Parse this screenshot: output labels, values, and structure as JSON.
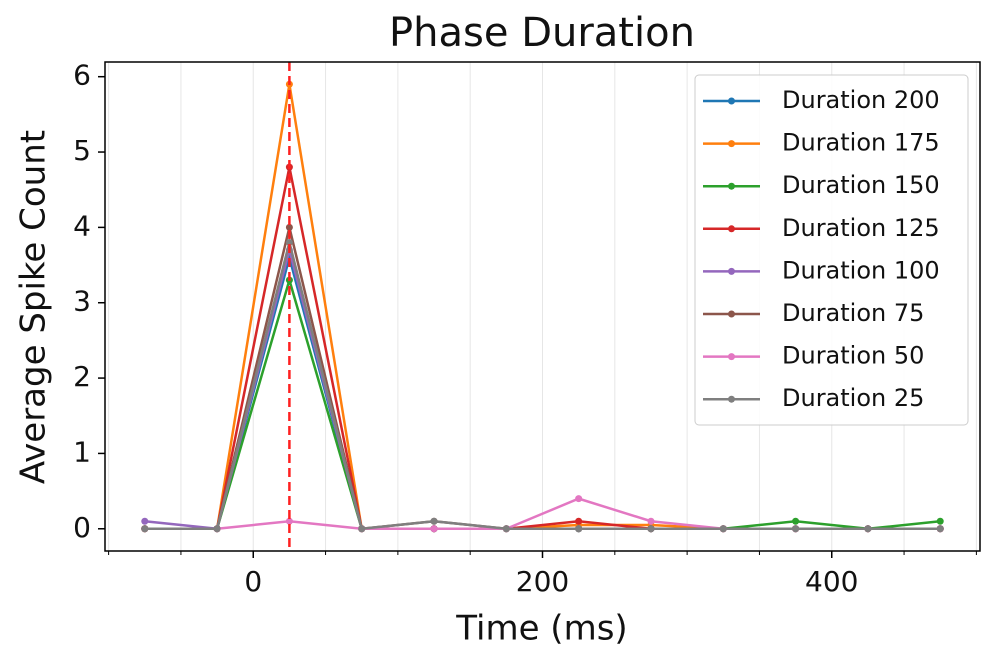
{
  "chart_data": {
    "type": "line",
    "title": "Phase Duration",
    "xlabel": "Time (ms)",
    "ylabel": "Average Spike Count",
    "x": [
      -75,
      -25,
      25,
      75,
      125,
      175,
      225,
      275,
      325,
      375,
      425,
      475
    ],
    "series": [
      {
        "name": "Duration 200",
        "color": "#1f77b4",
        "values": [
          0,
          0,
          3.6,
          0,
          0,
          0,
          0,
          0,
          0,
          0,
          0,
          0
        ]
      },
      {
        "name": "Duration 175",
        "color": "#ff7f0e",
        "values": [
          0,
          0,
          5.9,
          0,
          0,
          0,
          0.05,
          0.05,
          0,
          0,
          0,
          0
        ]
      },
      {
        "name": "Duration 150",
        "color": "#2ca02c",
        "values": [
          0,
          0,
          3.3,
          0,
          0,
          0,
          0,
          0,
          0,
          0.1,
          0,
          0.1
        ]
      },
      {
        "name": "Duration 125",
        "color": "#d62728",
        "values": [
          0,
          0,
          4.8,
          0,
          0,
          0,
          0.1,
          0,
          0,
          0,
          0,
          0
        ]
      },
      {
        "name": "Duration 100",
        "color": "#9467bd",
        "values": [
          0.1,
          0,
          3.7,
          0,
          0,
          0,
          0,
          0,
          0,
          0,
          0,
          0
        ]
      },
      {
        "name": "Duration 75",
        "color": "#8c564b",
        "values": [
          0,
          0,
          4.0,
          0,
          0.1,
          0,
          0,
          0,
          0,
          0,
          0,
          0
        ]
      },
      {
        "name": "Duration 50",
        "color": "#e377c2",
        "values": [
          0,
          0,
          0.1,
          0,
          0,
          0,
          0.4,
          0.1,
          0,
          0,
          0,
          0
        ]
      },
      {
        "name": "Duration 25",
        "color": "#7f7f7f",
        "values": [
          0,
          0,
          3.8,
          0,
          0.1,
          0,
          0,
          0,
          0,
          0,
          0,
          0
        ]
      }
    ],
    "xlim": [
      -102.5,
      502.5
    ],
    "ylim": [
      -0.295,
      6.195
    ],
    "xticks": [
      0,
      200,
      400
    ],
    "xminorticks": [
      -100,
      -50,
      50,
      100,
      150,
      250,
      300,
      350,
      450,
      500
    ],
    "yticks": [
      0,
      1,
      2,
      3,
      4,
      5,
      6
    ],
    "xgrid": true,
    "vline": {
      "x": 25,
      "color": "#ff2020"
    },
    "legend": "upper right"
  }
}
